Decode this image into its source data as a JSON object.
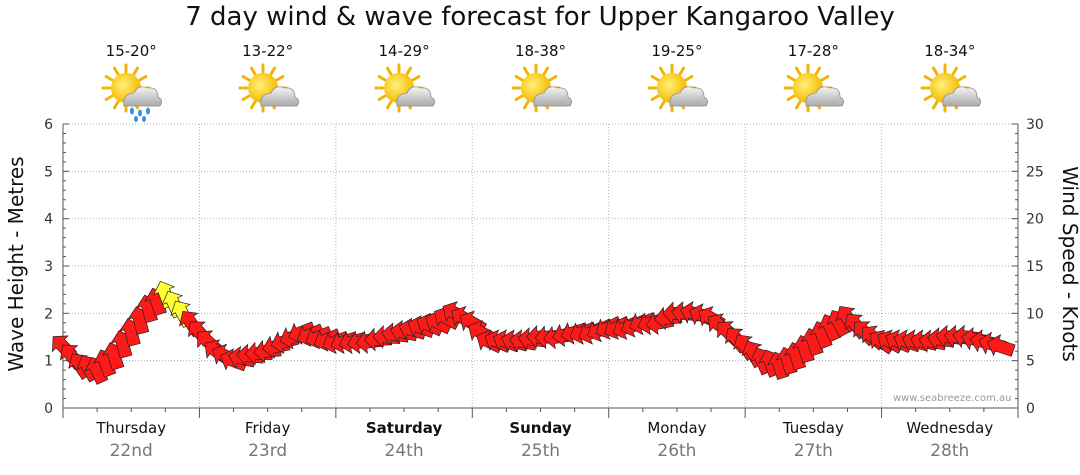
{
  "chart_data": {
    "type": "line",
    "title": "7 day wind & wave forecast for Upper Kangaroo Valley",
    "ylabel_left": "Wave Height - Metres",
    "ylabel_right": "Wind Speed - Knots",
    "ylim_left": [
      0,
      6
    ],
    "ylim_right": [
      0,
      30
    ],
    "yticks_left": [
      "0",
      "1",
      "2",
      "3",
      "4",
      "5",
      "6"
    ],
    "yticks_right": [
      "0",
      "5",
      "10",
      "15",
      "20",
      "25",
      "30"
    ],
    "days": [
      {
        "name": "Thursday",
        "date": "22nd",
        "temp": "15-20°",
        "icon": "rain",
        "bold": false
      },
      {
        "name": "Friday",
        "date": "23rd",
        "temp": "13-22°",
        "icon": "partly-cloudy",
        "bold": false
      },
      {
        "name": "Saturday",
        "date": "24th",
        "temp": "14-29°",
        "icon": "partly-cloudy",
        "bold": true
      },
      {
        "name": "Sunday",
        "date": "25th",
        "temp": "18-38°",
        "icon": "partly-cloudy",
        "bold": true
      },
      {
        "name": "Monday",
        "date": "26th",
        "temp": "19-25°",
        "icon": "partly-cloudy",
        "bold": false
      },
      {
        "name": "Tuesday",
        "date": "27th",
        "temp": "17-28°",
        "icon": "partly-cloudy",
        "bold": false
      },
      {
        "name": "Wednesday",
        "date": "28th",
        "temp": "18-34°",
        "icon": "partly-cloudy",
        "bold": false
      }
    ],
    "series": [
      {
        "name": "Wind Speed (knots)",
        "unit": "knots",
        "x_hours": [
          0,
          3,
          6,
          9,
          12,
          15,
          18,
          21,
          24,
          27,
          30,
          33,
          36,
          39,
          42,
          45,
          48,
          51,
          54,
          57,
          60,
          63,
          66,
          69,
          72,
          75,
          78,
          81,
          84,
          87,
          90,
          93,
          96,
          99,
          102,
          105,
          108,
          111,
          114,
          117,
          120,
          123,
          126,
          129,
          132,
          135,
          138,
          141,
          144,
          147,
          150,
          153,
          156,
          159,
          162,
          165
        ],
        "values": [
          6.5,
          4.5,
          4,
          5.5,
          8,
          10.5,
          12,
          10,
          8,
          6,
          5,
          5.5,
          6,
          7,
          8,
          7.5,
          7,
          7,
          7,
          7.5,
          8,
          8.5,
          9,
          10,
          9,
          7,
          7,
          7,
          7.5,
          7.5,
          8,
          8,
          8.5,
          8.5,
          9,
          9,
          10,
          10,
          9.5,
          8,
          6.5,
          5,
          4.5,
          5.5,
          7,
          8.5,
          9.5,
          8,
          7,
          7,
          7,
          7,
          7.5,
          7.5,
          7,
          6.5
        ],
        "color": "#ff1a1a"
      }
    ],
    "highlight": {
      "from_hour": 18,
      "to_hour": 22,
      "color": "#ffff33"
    },
    "watermark": "www.seabreeze.com.au"
  }
}
